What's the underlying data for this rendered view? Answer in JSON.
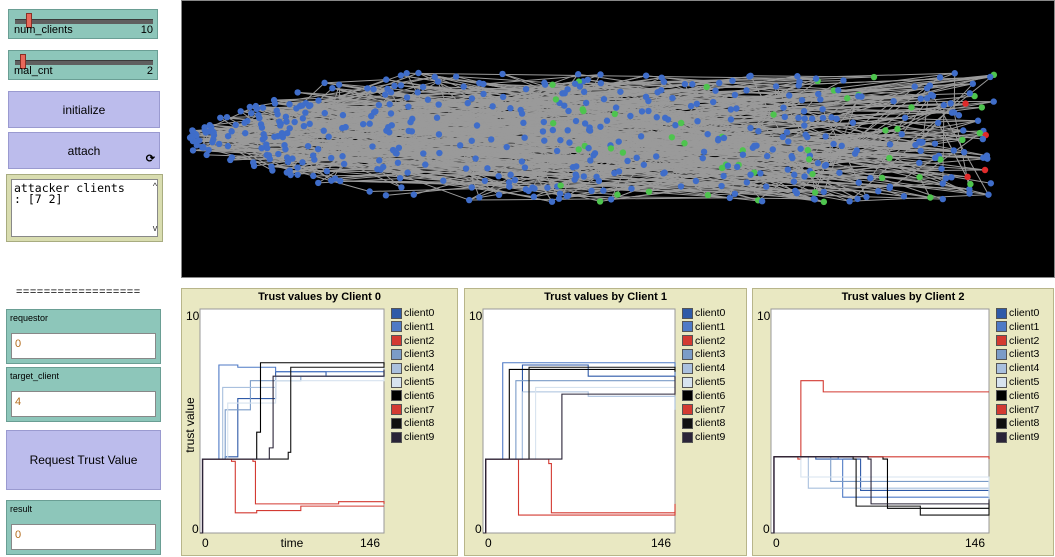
{
  "sliders": [
    {
      "label": "num_clients",
      "value": "10",
      "fraction": 0.1
    },
    {
      "label": "mal_cnt",
      "value": "2",
      "fraction": 0.05
    }
  ],
  "buttons": {
    "initialize": "initialize",
    "attach": "attach",
    "attach_icon": "forever-loop-icon",
    "request": "Request Trust Value"
  },
  "output": {
    "lines": [
      "attacker clients",
      ": [7 2]"
    ]
  },
  "separator": "==================",
  "inputs": {
    "requestor": {
      "label": "requestor",
      "value": "0"
    },
    "target_client": {
      "label": "target_client",
      "value": "4"
    },
    "result": {
      "label": "result",
      "value": "0"
    }
  },
  "legend_colors": {
    "client0": "#2f5aa8",
    "client1": "#4f7ac6",
    "client2": "#d33a32",
    "client3": "#7b9cc8",
    "client4": "#a9c0de",
    "client5": "#d7e3ef",
    "client6": "#000000",
    "client7": "#d33a32",
    "client8": "#101010",
    "client9": "#2a2438"
  },
  "plots": [
    {
      "title": "Trust values by Client 0",
      "ymax": "10",
      "ymin": "0",
      "xmin": "0",
      "xmax": "146",
      "xlabel": "time",
      "ylabel": "trust value"
    },
    {
      "title": "Trust values by Client 1",
      "ymax": "10",
      "ymin": "0",
      "xmin": "0",
      "xmax": "146",
      "xlabel": "",
      "ylabel": ""
    },
    {
      "title": "Trust values by Client 2",
      "ymax": "10",
      "ymin": "0",
      "xmin": "0",
      "xmax": "146",
      "xlabel": "",
      "ylabel": ""
    }
  ],
  "legend": [
    "client0",
    "client1",
    "client2",
    "client3",
    "client4",
    "client5",
    "client6",
    "client7",
    "client8",
    "client9"
  ],
  "chart_data": [
    {
      "type": "line",
      "title": "Trust values by Client 0",
      "xlabel": "time",
      "ylabel": "trust value",
      "xlim": [
        0,
        146
      ],
      "ylim": [
        0,
        10
      ],
      "series": [
        {
          "name": "client0",
          "values": [
            [
              0,
              0
            ],
            [
              2,
              3.3
            ],
            [
              20,
              3.4
            ],
            [
              30,
              6.0
            ],
            [
              60,
              7.2
            ],
            [
              100,
              7.0
            ],
            [
              146,
              6.9
            ]
          ]
        },
        {
          "name": "client1",
          "values": [
            [
              0,
              0
            ],
            [
              2,
              3.3
            ],
            [
              15,
              7.5
            ],
            [
              30,
              7.4
            ],
            [
              60,
              7.2
            ],
            [
              146,
              7.0
            ]
          ]
        },
        {
          "name": "client2",
          "values": [
            [
              0,
              0
            ],
            [
              2,
              3.3
            ],
            [
              25,
              3.2
            ],
            [
              28,
              0.9
            ],
            [
              45,
              1.0
            ],
            [
              80,
              1.2
            ],
            [
              146,
              1.2
            ]
          ]
        },
        {
          "name": "client3",
          "values": [
            [
              0,
              0
            ],
            [
              2,
              3.3
            ],
            [
              20,
              5.5
            ],
            [
              40,
              6.8
            ],
            [
              80,
              7.0
            ],
            [
              146,
              7.2
            ]
          ]
        },
        {
          "name": "client4",
          "values": [
            [
              0,
              0
            ],
            [
              2,
              3.3
            ],
            [
              18,
              6.5
            ],
            [
              60,
              7.0
            ],
            [
              146,
              7.4
            ]
          ]
        },
        {
          "name": "client5",
          "values": [
            [
              0,
              0
            ],
            [
              2,
              3.3
            ],
            [
              22,
              5.8
            ],
            [
              60,
              6.8
            ],
            [
              146,
              7.0
            ]
          ]
        },
        {
          "name": "client6",
          "values": [
            [
              0,
              0
            ],
            [
              2,
              3.3
            ],
            [
              45,
              4.5
            ],
            [
              48,
              7.6
            ],
            [
              146,
              7.5
            ]
          ]
        },
        {
          "name": "client7",
          "values": [
            [
              0,
              0
            ],
            [
              2,
              3.3
            ],
            [
              42,
              3.2
            ],
            [
              44,
              1.3
            ],
            [
              110,
              1.4
            ],
            [
              146,
              1.3
            ]
          ]
        },
        {
          "name": "client8",
          "values": [
            [
              0,
              0
            ],
            [
              2,
              3.3
            ],
            [
              70,
              3.6
            ],
            [
              72,
              7.4
            ],
            [
              146,
              7.6
            ]
          ]
        },
        {
          "name": "client9",
          "values": [
            [
              0,
              0
            ],
            [
              2,
              3.3
            ],
            [
              55,
              3.8
            ],
            [
              58,
              7.0
            ],
            [
              146,
              7.3
            ]
          ]
        }
      ]
    },
    {
      "type": "line",
      "title": "Trust values by Client 1",
      "xlabel": "",
      "ylabel": "",
      "xlim": [
        0,
        146
      ],
      "ylim": [
        0,
        10
      ],
      "series": [
        {
          "name": "client0",
          "values": [
            [
              0,
              0
            ],
            [
              2,
              3.3
            ],
            [
              30,
              7.5
            ],
            [
              80,
              7.0
            ],
            [
              146,
              6.9
            ]
          ]
        },
        {
          "name": "client1",
          "values": [
            [
              0,
              0
            ],
            [
              2,
              3.3
            ],
            [
              15,
              7.6
            ],
            [
              146,
              7.0
            ]
          ]
        },
        {
          "name": "client2",
          "values": [
            [
              0,
              0
            ],
            [
              2,
              3.3
            ],
            [
              25,
              3.3
            ],
            [
              27,
              0.8
            ],
            [
              146,
              1.3
            ]
          ]
        },
        {
          "name": "client3",
          "values": [
            [
              0,
              0
            ],
            [
              2,
              3.3
            ],
            [
              25,
              6.8
            ],
            [
              146,
              7.0
            ]
          ]
        },
        {
          "name": "client4",
          "values": [
            [
              0,
              0
            ],
            [
              2,
              3.3
            ],
            [
              30,
              6.3
            ],
            [
              80,
              6.1
            ],
            [
              146,
              5.5
            ]
          ]
        },
        {
          "name": "client5",
          "values": [
            [
              0,
              0
            ],
            [
              2,
              3.3
            ],
            [
              40,
              6.5
            ],
            [
              146,
              6.8
            ]
          ]
        },
        {
          "name": "client6",
          "values": [
            [
              0,
              0
            ],
            [
              2,
              3.3
            ],
            [
              20,
              7.3
            ],
            [
              146,
              7.2
            ]
          ]
        },
        {
          "name": "client7",
          "values": [
            [
              0,
              0
            ],
            [
              2,
              3.3
            ],
            [
              50,
              3.1
            ],
            [
              52,
              0.9
            ],
            [
              146,
              1.0
            ]
          ]
        },
        {
          "name": "client8",
          "values": [
            [
              0,
              0
            ],
            [
              2,
              3.3
            ],
            [
              35,
              7.4
            ],
            [
              146,
              7.3
            ]
          ]
        },
        {
          "name": "client9",
          "values": [
            [
              0,
              0
            ],
            [
              2,
              3.3
            ],
            [
              60,
              6.2
            ],
            [
              146,
              7.0
            ]
          ]
        }
      ]
    },
    {
      "type": "line",
      "title": "Trust values by Client 2",
      "xlabel": "",
      "ylabel": "",
      "xlim": [
        0,
        146
      ],
      "ylim": [
        0,
        10
      ],
      "series": [
        {
          "name": "client0",
          "values": [
            [
              0,
              0
            ],
            [
              2,
              3.4
            ],
            [
              30,
              3.3
            ],
            [
              60,
              1.9
            ],
            [
              146,
              1.8
            ]
          ]
        },
        {
          "name": "client1",
          "values": [
            [
              0,
              0
            ],
            [
              2,
              3.4
            ],
            [
              45,
              3.3
            ],
            [
              48,
              1.6
            ],
            [
              146,
              1.9
            ]
          ]
        },
        {
          "name": "client2",
          "values": [
            [
              0,
              0
            ],
            [
              2,
              3.4
            ],
            [
              18,
              3.3
            ],
            [
              20,
              6.8
            ],
            [
              35,
              6.3
            ],
            [
              146,
              6.3
            ]
          ]
        },
        {
          "name": "client3",
          "values": [
            [
              0,
              0
            ],
            [
              2,
              3.4
            ],
            [
              40,
              2.3
            ],
            [
              146,
              1.7
            ]
          ]
        },
        {
          "name": "client4",
          "values": [
            [
              0,
              0
            ],
            [
              2,
              3.4
            ],
            [
              25,
              2.0
            ],
            [
              146,
              1.5
            ]
          ]
        },
        {
          "name": "client5",
          "values": [
            [
              0,
              0
            ],
            [
              2,
              3.4
            ],
            [
              20,
              2.5
            ],
            [
              146,
              1.6
            ]
          ]
        },
        {
          "name": "client6",
          "values": [
            [
              0,
              0
            ],
            [
              2,
              3.4
            ],
            [
              75,
              3.3
            ],
            [
              78,
              1.1
            ],
            [
              146,
              1.4
            ]
          ]
        },
        {
          "name": "client7",
          "values": [
            [
              0,
              0
            ],
            [
              2,
              3.4
            ],
            [
              15,
              3.4
            ],
            [
              146,
              3.3
            ]
          ]
        },
        {
          "name": "client8",
          "values": [
            [
              0,
              0
            ],
            [
              2,
              3.4
            ],
            [
              55,
              3.3
            ],
            [
              57,
              1.2
            ],
            [
              100,
              0.8
            ],
            [
              146,
              1.2
            ]
          ]
        },
        {
          "name": "client9",
          "values": [
            [
              0,
              0
            ],
            [
              2,
              3.4
            ],
            [
              65,
              3.3
            ],
            [
              67,
              1.3
            ],
            [
              146,
              1.5
            ]
          ]
        }
      ]
    }
  ]
}
